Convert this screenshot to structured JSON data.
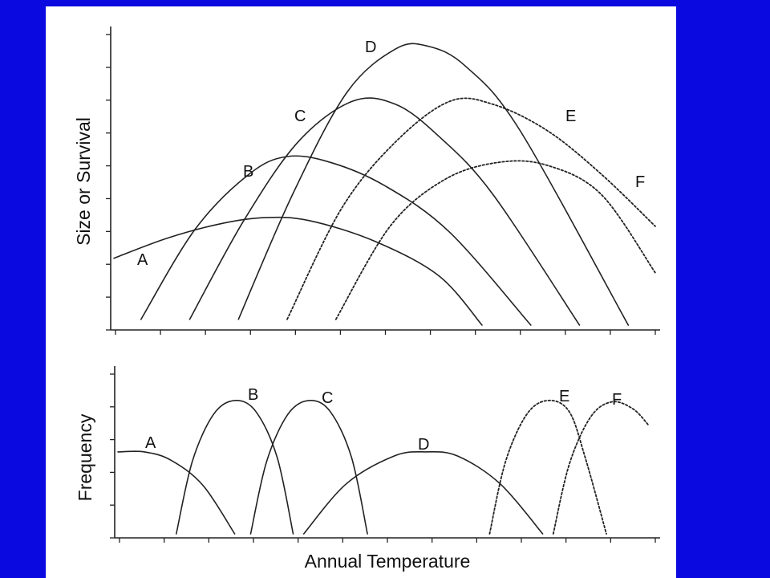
{
  "slide": {
    "background_color": "#0a0ae0",
    "panel_color": "#ffffff"
  },
  "chart_data": [
    {
      "type": "line",
      "panel": "top",
      "title": "",
      "xlabel": "",
      "ylabel": "Size or Survival",
      "x_range": [
        0,
        100
      ],
      "y_range": [
        0,
        100
      ],
      "ticks_labeled": false,
      "series": [
        {
          "name": "A",
          "style": "solid",
          "x": [
            0,
            10,
            20,
            28,
            36,
            48,
            60,
            68
          ],
          "y": [
            23,
            30,
            35,
            37,
            36,
            29,
            17,
            0
          ]
        },
        {
          "name": "B",
          "style": "solid",
          "x": [
            5,
            15,
            25,
            32,
            40,
            50,
            62,
            77
          ],
          "y": [
            2,
            33,
            52,
            58,
            56,
            48,
            32,
            0
          ]
        },
        {
          "name": "C",
          "style": "solid",
          "x": [
            14,
            24,
            34,
            44,
            52,
            60,
            70,
            86
          ],
          "y": [
            2,
            36,
            63,
            77,
            76,
            65,
            45,
            0
          ]
        },
        {
          "name": "D",
          "style": "solid",
          "x": [
            23,
            33,
            43,
            52,
            58,
            65,
            75,
            95
          ],
          "y": [
            2,
            45,
            80,
            95,
            96,
            89,
            67,
            0
          ]
        },
        {
          "name": "E",
          "style": "dashed",
          "x": [
            32,
            42,
            52,
            62,
            70,
            80,
            90,
            100
          ],
          "y": [
            2,
            40,
            63,
            77,
            76,
            67,
            52,
            34
          ]
        },
        {
          "name": "F",
          "style": "dashed",
          "x": [
            41,
            51,
            61,
            71,
            80,
            90,
            100
          ],
          "y": [
            2,
            34,
            50,
            56,
            55,
            45,
            18
          ]
        }
      ]
    },
    {
      "type": "line",
      "panel": "bottom",
      "title": "",
      "xlabel": "Annual Temperature",
      "ylabel": "Frequency",
      "x_range": [
        0,
        100
      ],
      "y_range": [
        0,
        100
      ],
      "ticks_labeled": false,
      "series": [
        {
          "name": "A",
          "style": "solid",
          "x": [
            0,
            5,
            10,
            16,
            22
          ],
          "y": [
            59,
            59,
            53,
            35,
            0
          ]
        },
        {
          "name": "B",
          "style": "solid",
          "x": [
            11,
            14,
            18,
            22,
            26,
            30,
            33
          ],
          "y": [
            0,
            52,
            86,
            96,
            88,
            55,
            0
          ]
        },
        {
          "name": "C",
          "style": "solid",
          "x": [
            25,
            28,
            32,
            36,
            40,
            44,
            47
          ],
          "y": [
            0,
            52,
            86,
            96,
            88,
            55,
            0
          ]
        },
        {
          "name": "D",
          "style": "solid",
          "x": [
            35,
            43,
            52,
            58,
            64,
            72,
            80
          ],
          "y": [
            0,
            36,
            56,
            59,
            56,
            36,
            0
          ]
        },
        {
          "name": "E",
          "style": "dashed",
          "x": [
            70,
            73,
            77,
            81,
            85,
            88,
            92
          ],
          "y": [
            0,
            52,
            86,
            96,
            88,
            55,
            0
          ]
        },
        {
          "name": "F",
          "style": "dashed",
          "x": [
            82,
            85,
            89,
            93,
            97,
            100
          ],
          "y": [
            0,
            50,
            84,
            95,
            90,
            78
          ]
        }
      ]
    }
  ]
}
